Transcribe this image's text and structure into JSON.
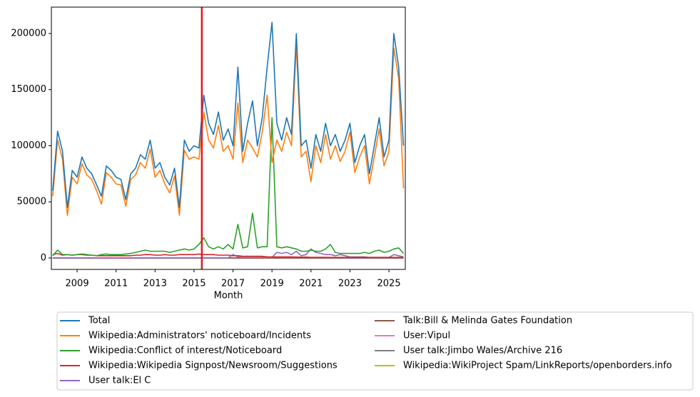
{
  "chart_data": {
    "type": "line",
    "xlabel": "Month",
    "x": [
      2007.75,
      2008,
      2008.25,
      2008.5,
      2008.75,
      2009,
      2009.25,
      2009.5,
      2009.75,
      2010,
      2010.25,
      2010.5,
      2010.75,
      2011,
      2011.25,
      2011.5,
      2011.75,
      2012,
      2012.25,
      2012.5,
      2012.75,
      2013,
      2013.25,
      2013.5,
      2013.75,
      2014,
      2014.25,
      2014.5,
      2014.75,
      2015,
      2015.25,
      2015.5,
      2015.75,
      2016,
      2016.25,
      2016.5,
      2016.75,
      2017,
      2017.25,
      2017.5,
      2017.75,
      2018,
      2018.25,
      2018.5,
      2018.75,
      2019,
      2019.25,
      2019.5,
      2019.75,
      2020,
      2020.25,
      2020.5,
      2020.75,
      2021,
      2021.25,
      2021.5,
      2021.75,
      2022,
      2022.25,
      2022.5,
      2022.75,
      2023,
      2023.25,
      2023.5,
      2023.75,
      2024,
      2024.25,
      2024.5,
      2024.75,
      2025,
      2025.25,
      2025.5,
      2025.75
    ],
    "xlim": [
      2007.68,
      2025.84
    ],
    "xticks": [
      2009,
      2011,
      2013,
      2015,
      2017,
      2019,
      2021,
      2023,
      2025
    ],
    "ylim": [
      -10200,
      223500
    ],
    "yticks": [
      0,
      50000,
      100000,
      150000,
      200000
    ],
    "vline": {
      "x": 2015.4,
      "color": "#e8141d"
    },
    "series": [
      {
        "name": "Total",
        "color": "#1f77b4",
        "values": [
          60000,
          113000,
          95000,
          45000,
          78000,
          72000,
          90000,
          80000,
          75000,
          65000,
          55000,
          82000,
          78000,
          72000,
          70000,
          52000,
          75000,
          80000,
          92000,
          88000,
          105000,
          80000,
          85000,
          72000,
          65000,
          80000,
          45000,
          105000,
          95000,
          100000,
          98000,
          145000,
          120000,
          110000,
          130000,
          105000,
          115000,
          100000,
          170000,
          95000,
          120000,
          140000,
          100000,
          125000,
          170000,
          210000,
          120000,
          105000,
          125000,
          110000,
          200000,
          100000,
          105000,
          80000,
          110000,
          95000,
          120000,
          100000,
          110000,
          95000,
          105000,
          120000,
          85000,
          100000,
          110000,
          75000,
          100000,
          125000,
          90000,
          105000,
          200000,
          170000,
          100000
        ]
      },
      {
        "name": "Wikipedia:Administrators' noticeboard/Incidents",
        "color": "#ff7f0e",
        "values": [
          55000,
          105000,
          88000,
          38000,
          72000,
          66000,
          84000,
          74000,
          70000,
          60000,
          48000,
          76000,
          72000,
          66000,
          65000,
          46000,
          70000,
          74000,
          85000,
          80000,
          97000,
          72000,
          78000,
          66000,
          58000,
          73000,
          38000,
          96000,
          88000,
          90000,
          88000,
          130000,
          105000,
          98000,
          118000,
          95000,
          100000,
          88000,
          138000,
          85000,
          105000,
          98000,
          90000,
          112000,
          145000,
          85000,
          105000,
          95000,
          112000,
          100000,
          190000,
          90000,
          95000,
          68000,
          100000,
          85000,
          110000,
          88000,
          100000,
          86000,
          95000,
          112000,
          76000,
          90000,
          100000,
          66000,
          90000,
          115000,
          82000,
          95000,
          187000,
          160000,
          62000
        ]
      },
      {
        "name": "Wikipedia:Conflict of interest/Noticeboard",
        "color": "#2ca02c",
        "values": [
          2000,
          7000,
          3000,
          3000,
          2500,
          3000,
          3500,
          3000,
          2500,
          2000,
          3000,
          3500,
          3000,
          3000,
          3000,
          3500,
          4000,
          5000,
          6000,
          7000,
          6000,
          6000,
          6000,
          6000,
          5000,
          6000,
          7000,
          8000,
          7000,
          8000,
          12000,
          18000,
          10000,
          8000,
          10000,
          8000,
          12000,
          8000,
          30000,
          9000,
          10000,
          40000,
          9000,
          10000,
          10000,
          125000,
          10000,
          9000,
          10000,
          9000,
          8000,
          6000,
          6000,
          7000,
          6000,
          6000,
          8000,
          12000,
          5000,
          4000,
          4000,
          4000,
          4000,
          4000,
          5000,
          4000,
          6000,
          7000,
          5000,
          6000,
          8000,
          9000,
          4000
        ]
      },
      {
        "name": "Wikipedia:Wikipedia Signpost/Newsroom/Suggestions",
        "color": "#d62728",
        "values": [
          3000,
          4000,
          2500,
          3000,
          2500,
          3000,
          3000,
          2500,
          2500,
          2000,
          2000,
          2000,
          2000,
          2000,
          2000,
          2000,
          2000,
          2500,
          2500,
          3000,
          3000,
          2500,
          2500,
          3000,
          2500,
          2500,
          3000,
          3000,
          3000,
          3000,
          3500,
          3000,
          3000,
          3000,
          2500,
          2500,
          2500,
          2000,
          2000,
          1500,
          1500,
          1500,
          1500,
          1500,
          1000,
          1000,
          1000,
          1000,
          1000,
          1000,
          800,
          800,
          800,
          600,
          600,
          600,
          600,
          500,
          500,
          500,
          500,
          500,
          500,
          500,
          500,
          500,
          500,
          500,
          500,
          500,
          500,
          500,
          500
        ]
      },
      {
        "name": "User talk:El C",
        "color": "#9467bd",
        "values": [
          0,
          0,
          0,
          0,
          0,
          0,
          0,
          0,
          0,
          0,
          0,
          0,
          0,
          0,
          0,
          0,
          0,
          0,
          0,
          0,
          0,
          0,
          0,
          0,
          0,
          0,
          0,
          0,
          0,
          0,
          0,
          0,
          0,
          0,
          0,
          0,
          0,
          3000,
          1000,
          500,
          500,
          500,
          500,
          500,
          500,
          500,
          5000,
          4000,
          5000,
          3000,
          6000,
          2000,
          3000,
          8000,
          5000,
          4000,
          3000,
          3000,
          2000,
          3000,
          2000,
          1000,
          1000,
          1000,
          1000,
          500,
          500,
          500,
          500,
          500,
          3000,
          2000,
          1000
        ]
      },
      {
        "name": "Talk:Bill & Melinda Gates Foundation",
        "color": "#8c564b",
        "values": [
          0,
          0,
          0,
          0,
          0,
          0,
          0,
          0,
          0,
          0,
          0,
          0,
          0,
          0,
          0,
          0,
          0,
          0,
          0,
          0,
          0,
          0,
          0,
          0,
          0,
          0,
          0,
          0,
          0,
          0,
          0,
          0,
          0,
          0,
          0,
          0,
          0,
          0,
          0,
          0,
          0,
          0,
          0,
          0,
          0,
          0,
          0,
          0,
          0,
          0,
          0,
          0,
          0,
          0,
          0,
          0,
          0,
          0,
          0,
          0,
          0,
          0,
          0,
          0,
          0,
          0,
          0,
          0,
          0,
          0,
          0,
          0,
          0
        ]
      },
      {
        "name": "User:Vipul",
        "color": "#e377c2",
        "values": [
          0,
          0,
          0,
          0,
          0,
          0,
          0,
          0,
          0,
          0,
          0,
          0,
          0,
          0,
          0,
          0,
          0,
          0,
          0,
          0,
          0,
          0,
          0,
          0,
          0,
          0,
          0,
          0,
          0,
          0,
          0,
          0,
          0,
          0,
          0,
          0,
          0,
          0,
          0,
          0,
          0,
          0,
          0,
          0,
          0,
          0,
          0,
          0,
          0,
          0,
          0,
          0,
          0,
          0,
          0,
          0,
          0,
          0,
          0,
          0,
          0,
          0,
          0,
          0,
          0,
          0,
          0,
          0,
          0,
          0,
          0,
          0,
          0
        ]
      },
      {
        "name": "User talk:Jimbo Wales/Archive 216",
        "color": "#7f7f7f",
        "values": [
          0,
          0,
          0,
          0,
          0,
          0,
          0,
          0,
          0,
          0,
          0,
          0,
          0,
          0,
          0,
          0,
          0,
          0,
          0,
          0,
          0,
          0,
          0,
          0,
          0,
          0,
          0,
          0,
          0,
          0,
          0,
          0,
          0,
          0,
          0,
          0,
          0,
          0,
          0,
          0,
          0,
          0,
          0,
          0,
          0,
          0,
          0,
          0,
          0,
          0,
          0,
          0,
          0,
          0,
          0,
          0,
          0,
          0,
          0,
          0,
          0,
          0,
          0,
          0,
          0,
          0,
          0,
          0,
          0,
          0,
          0,
          0,
          0
        ]
      },
      {
        "name": "Wikipedia:WikiProject Spam/LinkReports/openborders.info",
        "color": "#bcbd22",
        "values": [
          0,
          0,
          0,
          0,
          0,
          0,
          0,
          0,
          0,
          0,
          0,
          0,
          0,
          0,
          0,
          0,
          0,
          0,
          0,
          0,
          0,
          0,
          0,
          0,
          0,
          0,
          0,
          0,
          0,
          0,
          0,
          0,
          0,
          0,
          0,
          0,
          0,
          0,
          0,
          0,
          0,
          0,
          0,
          0,
          0,
          0,
          0,
          0,
          0,
          0,
          0,
          0,
          0,
          0,
          0,
          0,
          0,
          0,
          0,
          0,
          0,
          0,
          0,
          0,
          0,
          0,
          0,
          0,
          0,
          0,
          0,
          0,
          0
        ]
      }
    ]
  }
}
